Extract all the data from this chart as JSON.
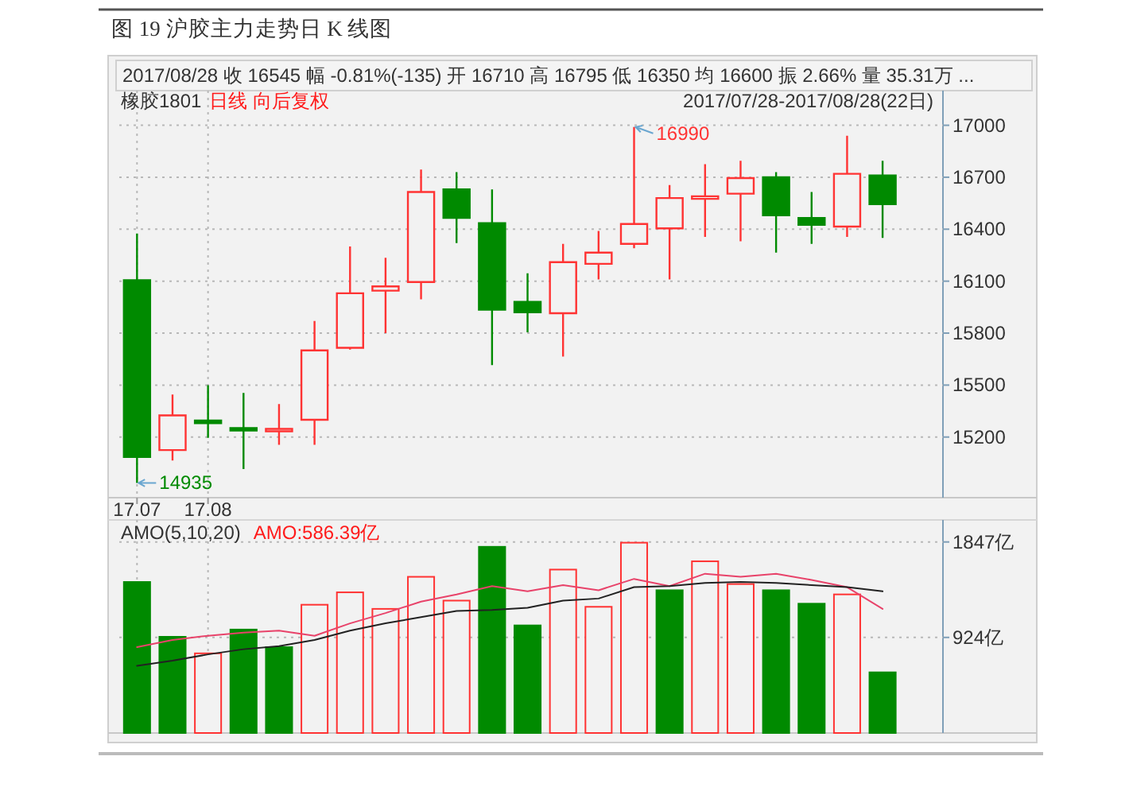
{
  "chart_data": [
    {
      "type": "candlestick",
      "title": "图 19 沪胶主力走势日 K 线图",
      "subtitle": "2017/08/28 收 16545 幅 -0.81%(-135) 开 16710 高 16795 低 16350 均 16600 振 2.66% 量 35.31万 ...",
      "categories": [
        "17.07",
        null,
        "17.08",
        null,
        null,
        null,
        null,
        null,
        null,
        null,
        null,
        null,
        null,
        null,
        null,
        null,
        null,
        null,
        null,
        null,
        null,
        null
      ],
      "ohlc": [
        [
          16105,
          16375,
          14935,
          15085
        ],
        [
          15125,
          15445,
          15065,
          15325
        ],
        [
          15295,
          15500,
          15195,
          15280
        ],
        [
          15250,
          15455,
          15015,
          15240
        ],
        [
          15235,
          15390,
          15155,
          15245
        ],
        [
          15300,
          15870,
          15155,
          15700
        ],
        [
          15715,
          16300,
          15705,
          16030
        ],
        [
          16045,
          16235,
          15800,
          16070
        ],
        [
          16095,
          16745,
          15995,
          16615
        ],
        [
          16630,
          16730,
          16320,
          16465
        ],
        [
          16435,
          16630,
          15615,
          15935
        ],
        [
          15980,
          16145,
          15805,
          15920
        ],
        [
          15915,
          16315,
          15665,
          16210
        ],
        [
          16200,
          16390,
          16110,
          16265
        ],
        [
          16315,
          16990,
          16290,
          16430
        ],
        [
          16405,
          16655,
          16110,
          16580
        ],
        [
          16575,
          16775,
          16355,
          16590
        ],
        [
          16605,
          16795,
          16330,
          16695
        ],
        [
          16700,
          16730,
          16265,
          16480
        ],
        [
          16465,
          16615,
          16315,
          16425
        ],
        [
          16415,
          16940,
          16355,
          16720
        ],
        [
          16710,
          16795,
          16350,
          16545
        ]
      ],
      "colors": [
        "#008a00",
        "#ff3333",
        "#008a00",
        "#008a00",
        "#ff3333",
        "#ff3333",
        "#ff3333",
        "#ff3333",
        "#ff3333",
        "#008a00",
        "#008a00",
        "#008a00",
        "#ff3333",
        "#ff3333",
        "#ff3333",
        "#ff3333",
        "#ff3333",
        "#ff3333",
        "#008a00",
        "#008a00",
        "#ff3333",
        "#008a00"
      ],
      "ylim": [
        14850,
        17200
      ],
      "yticks": [
        15200,
        15500,
        15800,
        16100,
        16400,
        16700,
        17000
      ],
      "grid": true,
      "annotations": [
        "橡胶1801",
        "日线 向后复权",
        "2017/07/28-2017/08/28(22日)",
        "16990",
        {
          "text": "14935",
          "x": "17.07",
          "y": 14935
        }
      ]
    },
    {
      "type": "bar",
      "title": "AMO(5,10,20)",
      "subtitle": "AMO:586.39亿",
      "categories": [
        "17.07",
        null,
        "17.08",
        null,
        null,
        null,
        null,
        null,
        null,
        null,
        null,
        null,
        null,
        null,
        null,
        null,
        null,
        null,
        null,
        null,
        null,
        null
      ],
      "series": [
        {
          "type": "bar",
          "values": [
            1460,
            930,
            770,
            1000,
            830,
            1240,
            1360,
            1200,
            1510,
            1280,
            1800,
            1040,
            1580,
            1220,
            1840,
            1380,
            1660,
            1440,
            1380,
            1250,
            1340,
            586.39
          ],
          "colors": [
            "#008a00",
            "#008a00",
            "#ff3333",
            "#008a00",
            "#008a00",
            "#ff3333",
            "#ff3333",
            "#ff3333",
            "#ff3333",
            "#ff3333",
            "#008a00",
            "#008a00",
            "#ff3333",
            "#ff3333",
            "#ff3333",
            "#008a00",
            "#ff3333",
            "#ff3333",
            "#008a00",
            "#008a00",
            "#ff3333",
            "#008a00"
          ]
        },
        {
          "type": "line",
          "color": "#e8436a",
          "values": [
            830,
            900,
            940,
            970,
            990,
            940,
            1060,
            1160,
            1270,
            1340,
            1420,
            1370,
            1430,
            1380,
            1490,
            1420,
            1540,
            1510,
            1540,
            1480,
            1410,
            1200
          ]
        },
        {
          "type": "line",
          "color": "#222222",
          "values": [
            650,
            700,
            760,
            810,
            840,
            900,
            990,
            1060,
            1120,
            1180,
            1190,
            1210,
            1280,
            1300,
            1410,
            1420,
            1450,
            1460,
            1450,
            1430,
            1410,
            1370
          ]
        }
      ],
      "ylim": [
        0,
        2060
      ],
      "yticks": [
        {
          "value": 924,
          "label": "924亿"
        },
        {
          "value": 1847,
          "label": "1847亿"
        }
      ],
      "grid": true,
      "tick_labels": "y"
    }
  ]
}
